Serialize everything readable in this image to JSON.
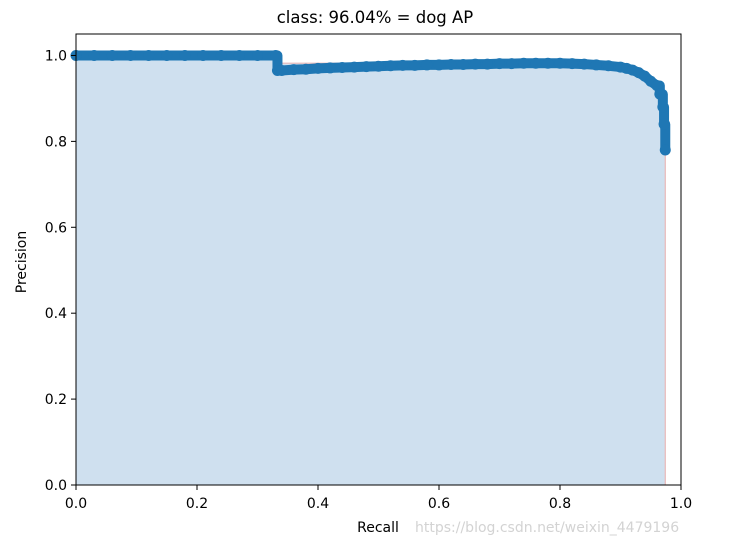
{
  "chart_data": {
    "type": "area",
    "title": "class: 96.04% = dog AP",
    "xlabel": "Recall",
    "ylabel": "Precision",
    "xlim": [
      0.0,
      1.0
    ],
    "ylim": [
      0.0,
      1.05
    ],
    "x_ticks": [
      "0.0",
      "0.2",
      "0.4",
      "0.6",
      "0.8",
      "1.0"
    ],
    "y_ticks": [
      "0.0",
      "0.2",
      "0.4",
      "0.6",
      "0.8",
      "1.0"
    ],
    "grid": false,
    "legend": "none",
    "fill_color": "#cfe0ef",
    "envelope_color": "#e8b8b8",
    "marker_color": "#1f77b4",
    "series": [
      {
        "x": [
          0.0,
          0.03,
          0.06,
          0.09,
          0.12,
          0.15,
          0.18,
          0.21,
          0.24,
          0.27,
          0.3,
          0.33,
          0.333,
          0.34,
          0.36,
          0.38,
          0.4,
          0.42,
          0.44,
          0.46,
          0.48,
          0.5,
          0.52,
          0.54,
          0.56,
          0.58,
          0.6,
          0.62,
          0.64,
          0.66,
          0.68,
          0.7,
          0.72,
          0.74,
          0.76,
          0.78,
          0.8,
          0.82,
          0.84,
          0.86,
          0.88,
          0.9,
          0.91,
          0.92,
          0.93,
          0.94,
          0.95,
          0.96,
          0.965,
          0.97,
          0.972,
          0.974
        ],
        "y": [
          1.0,
          1.0,
          1.0,
          1.0,
          1.0,
          1.0,
          1.0,
          1.0,
          1.0,
          1.0,
          1.0,
          1.0,
          0.965,
          0.965,
          0.967,
          0.968,
          0.97,
          0.971,
          0.972,
          0.973,
          0.974,
          0.975,
          0.976,
          0.977,
          0.977,
          0.978,
          0.978,
          0.979,
          0.979,
          0.98,
          0.98,
          0.981,
          0.981,
          0.982,
          0.982,
          0.982,
          0.982,
          0.981,
          0.98,
          0.978,
          0.976,
          0.973,
          0.97,
          0.966,
          0.96,
          0.952,
          0.94,
          0.93,
          0.91,
          0.88,
          0.84,
          0.78
        ]
      }
    ]
  },
  "watermark": "https://blog.csdn.net/weixin_4479196"
}
